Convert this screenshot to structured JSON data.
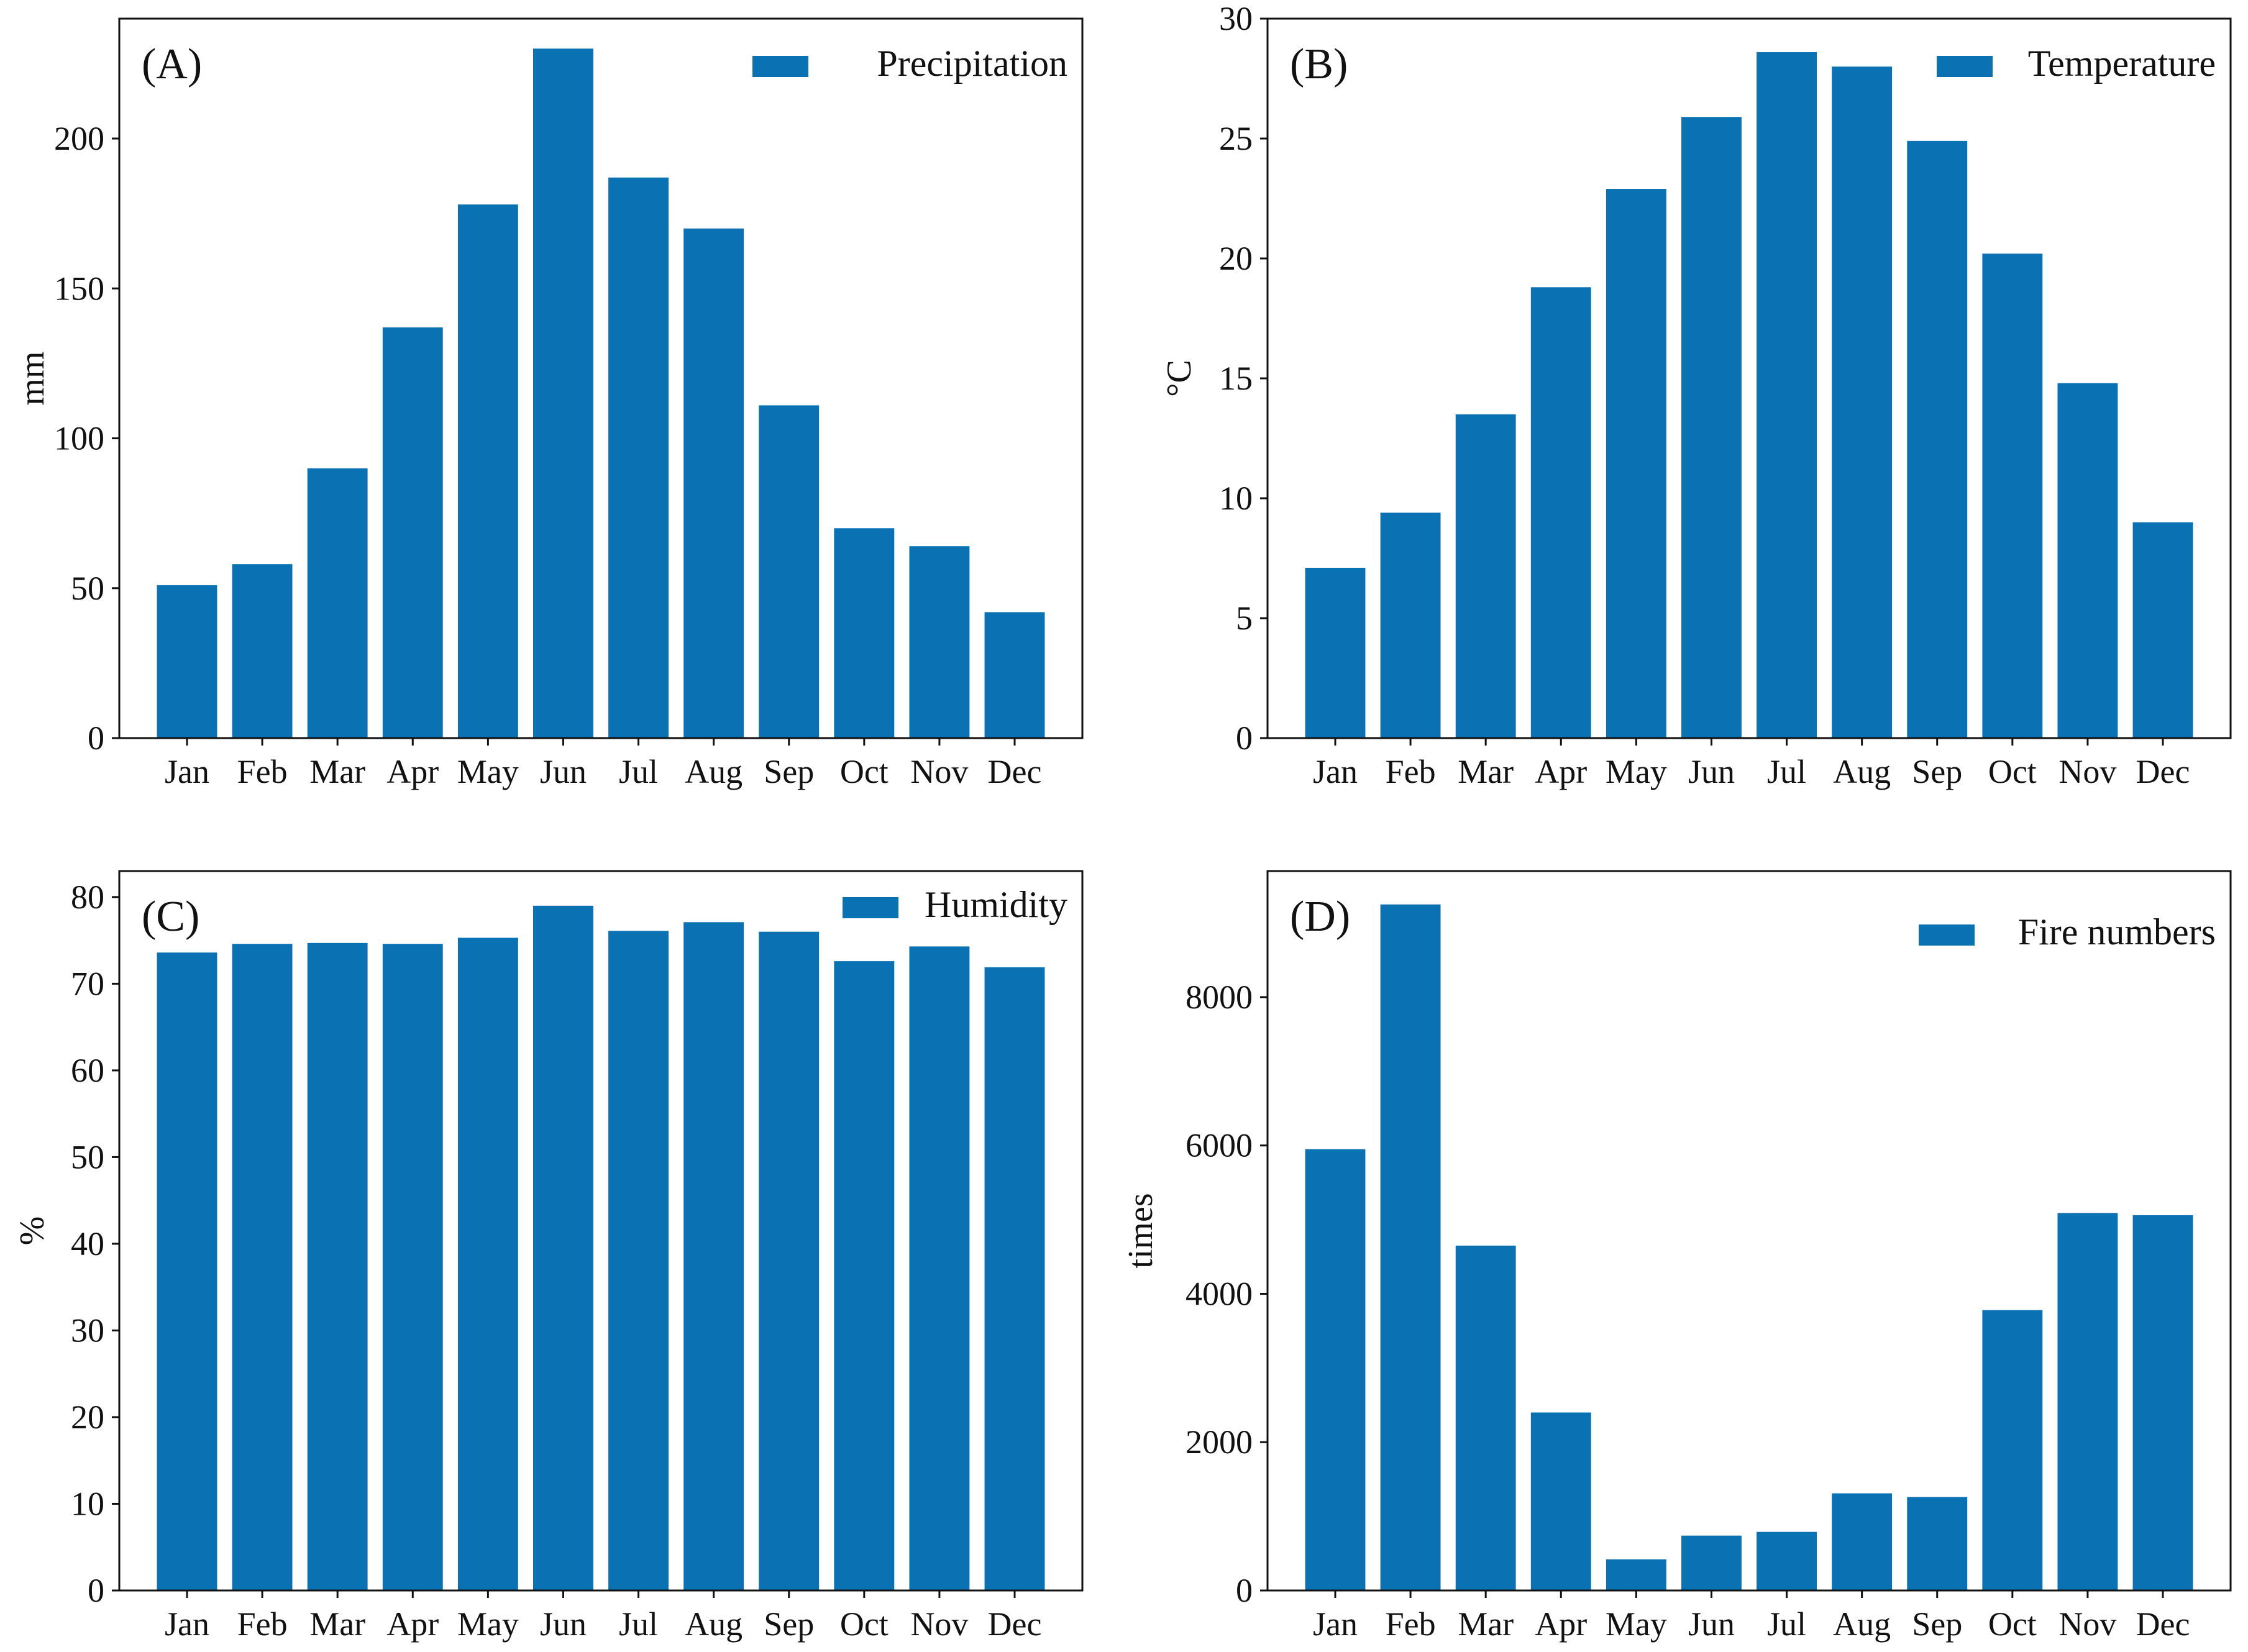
{
  "colors": {
    "bar": "#0a71b3",
    "axis": "#111111",
    "background": "#ffffff"
  },
  "chart_data": [
    {
      "type": "bar",
      "panel_label": "(A)",
      "legend": "Precipitation",
      "legend_position": "top-right",
      "ylabel": "mm",
      "xlabel": "",
      "categories": [
        "Jan",
        "Feb",
        "Mar",
        "Apr",
        "May",
        "Jun",
        "Jul",
        "Aug",
        "Sep",
        "Oct",
        "Nov",
        "Dec"
      ],
      "values": [
        51,
        58,
        90,
        137,
        178,
        230,
        187,
        170,
        111,
        70,
        64,
        42
      ],
      "ylim": [
        0,
        240
      ],
      "yticks": [
        0,
        50,
        100,
        150,
        200
      ],
      "grid": false
    },
    {
      "type": "bar",
      "panel_label": "(B)",
      "legend": "Temperature",
      "legend_position": "top-right",
      "ylabel": "°C",
      "xlabel": "",
      "categories": [
        "Jan",
        "Feb",
        "Mar",
        "Apr",
        "May",
        "Jun",
        "Jul",
        "Aug",
        "Sep",
        "Oct",
        "Nov",
        "Dec"
      ],
      "values": [
        7.1,
        9.4,
        13.5,
        18.8,
        22.9,
        25.9,
        28.6,
        28.0,
        24.9,
        20.2,
        14.8,
        9.0
      ],
      "ylim": [
        0,
        30
      ],
      "yticks": [
        0,
        5,
        10,
        15,
        20,
        25,
        30
      ],
      "grid": false
    },
    {
      "type": "bar",
      "panel_label": "(C)",
      "legend": "Humidity",
      "legend_position": "top-right",
      "ylabel": "%",
      "xlabel": "",
      "categories": [
        "Jan",
        "Feb",
        "Mar",
        "Apr",
        "May",
        "Jun",
        "Jul",
        "Aug",
        "Sep",
        "Oct",
        "Nov",
        "Dec"
      ],
      "values": [
        73.6,
        74.6,
        74.7,
        74.6,
        75.3,
        79.0,
        76.1,
        77.1,
        76.0,
        72.6,
        74.3,
        71.9
      ],
      "ylim": [
        0,
        83
      ],
      "yticks": [
        0,
        10,
        20,
        30,
        40,
        50,
        60,
        70,
        80
      ],
      "grid": false
    },
    {
      "type": "bar",
      "panel_label": "(D)",
      "legend": "Fire numbers",
      "legend_position": "top-right",
      "ylabel": "times",
      "xlabel": "",
      "categories": [
        "Jan",
        "Feb",
        "Mar",
        "Apr",
        "May",
        "Jun",
        "Jul",
        "Aug",
        "Sep",
        "Oct",
        "Nov",
        "Dec"
      ],
      "values": [
        5950,
        9250,
        4650,
        2400,
        420,
        740,
        790,
        1310,
        1260,
        3780,
        5090,
        5060
      ],
      "ylim": [
        0,
        9700
      ],
      "yticks": [
        0,
        2000,
        4000,
        6000,
        8000
      ],
      "grid": false
    }
  ]
}
